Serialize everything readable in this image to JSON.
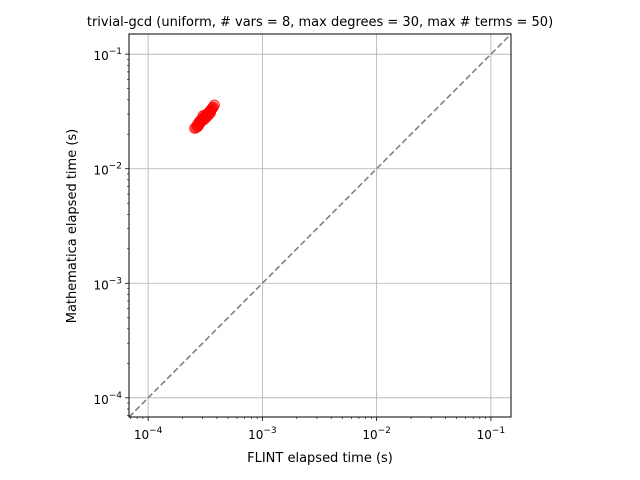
{
  "chart_data": {
    "type": "scatter",
    "title": "trivial-gcd (uniform, # vars = 8, max degrees = 30, max # terms = 50)",
    "xlabel": "FLINT elapsed time (s)",
    "ylabel": "Mathematica elapsed time (s)",
    "xscale": "log",
    "yscale": "log",
    "xlim": [
      6.8e-05,
      0.15
    ],
    "ylim": [
      6.8e-05,
      0.15
    ],
    "xticks": [
      {
        "value": 0.0001,
        "base": "10",
        "exp": "−4"
      },
      {
        "value": 0.001,
        "base": "10",
        "exp": "−3"
      },
      {
        "value": 0.01,
        "base": "10",
        "exp": "−2"
      },
      {
        "value": 0.1,
        "base": "10",
        "exp": "−1"
      }
    ],
    "yticks": [
      {
        "value": 0.0001,
        "base": "10",
        "exp": "−4"
      },
      {
        "value": 0.001,
        "base": "10",
        "exp": "−3"
      },
      {
        "value": 0.01,
        "base": "10",
        "exp": "−2"
      },
      {
        "value": 0.1,
        "base": "10",
        "exp": "−1"
      }
    ],
    "grid": true,
    "reference_line": {
      "style": "dashed",
      "color": "#808080",
      "relation": "y = x"
    },
    "point_color": "#ff0000",
    "points": [
      {
        "x": 0.000255,
        "y": 0.0225
      },
      {
        "x": 0.000262,
        "y": 0.0228
      },
      {
        "x": 0.00027,
        "y": 0.0232
      },
      {
        "x": 0.000268,
        "y": 0.024
      },
      {
        "x": 0.000275,
        "y": 0.0236
      },
      {
        "x": 0.00028,
        "y": 0.0245
      },
      {
        "x": 0.000285,
        "y": 0.025
      },
      {
        "x": 0.000278,
        "y": 0.0255
      },
      {
        "x": 0.00029,
        "y": 0.0258
      },
      {
        "x": 0.000295,
        "y": 0.0262
      },
      {
        "x": 0.0003,
        "y": 0.0268
      },
      {
        "x": 0.000288,
        "y": 0.0265
      },
      {
        "x": 0.000305,
        "y": 0.0272
      },
      {
        "x": 0.00031,
        "y": 0.0278
      },
      {
        "x": 0.000298,
        "y": 0.0275
      },
      {
        "x": 0.000315,
        "y": 0.0282
      },
      {
        "x": 0.00032,
        "y": 0.0288
      },
      {
        "x": 0.000325,
        "y": 0.0292
      },
      {
        "x": 0.000318,
        "y": 0.0296
      },
      {
        "x": 0.00033,
        "y": 0.03
      },
      {
        "x": 0.000335,
        "y": 0.0305
      },
      {
        "x": 0.000328,
        "y": 0.0285
      },
      {
        "x": 0.00034,
        "y": 0.031
      },
      {
        "x": 0.000345,
        "y": 0.0315
      },
      {
        "x": 0.00035,
        "y": 0.032
      },
      {
        "x": 0.000355,
        "y": 0.0326
      },
      {
        "x": 0.00036,
        "y": 0.0332
      },
      {
        "x": 0.000365,
        "y": 0.0338
      },
      {
        "x": 0.000372,
        "y": 0.0345
      },
      {
        "x": 0.00038,
        "y": 0.036
      },
      {
        "x": 0.000312,
        "y": 0.027
      },
      {
        "x": 0.000302,
        "y": 0.029
      },
      {
        "x": 0.000342,
        "y": 0.0298
      },
      {
        "x": 0.000352,
        "y": 0.0308
      }
    ]
  }
}
